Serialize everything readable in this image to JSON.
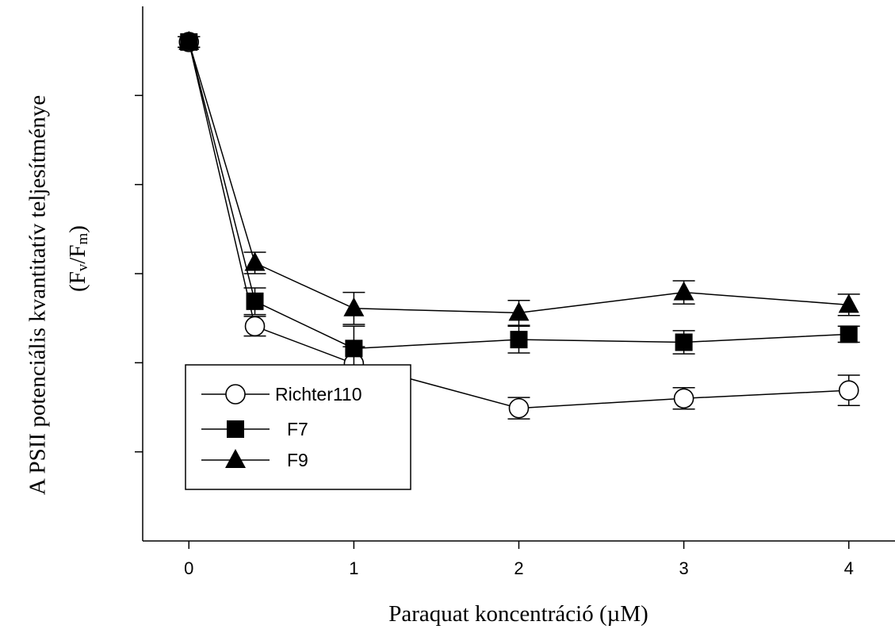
{
  "chart_data": {
    "type": "line",
    "xlabel": "Paraquat koncentráció (µM)",
    "ylabel": {
      "main": "A PSII potenciális kvantitatív teljesítménye",
      "formula_open": "(F",
      "formula_v": "v",
      "formula_slash": "/F",
      "formula_m": "m",
      "formula_close": ")"
    },
    "x_ticks": [
      0,
      1,
      2,
      3,
      4
    ],
    "y_ticks": [
      1,
      2,
      3,
      4,
      5
    ],
    "xlim": [
      -0.28,
      4.28
    ],
    "ylim": [
      0,
      6
    ],
    "y_tick_labels_shown": false,
    "grid": false,
    "legend_position": "bottom-left",
    "series": [
      {
        "name": "Richter110",
        "marker": "circle-open",
        "x": [
          0,
          0.4,
          1,
          2,
          3,
          4
        ],
        "y": [
          5.6,
          2.41,
          1.99,
          1.49,
          1.6,
          1.69
        ],
        "error": [
          0.06,
          0.11,
          0.19,
          0.12,
          0.12,
          0.17
        ]
      },
      {
        "name": "F7",
        "marker": "square-filled",
        "x": [
          0,
          0.4,
          1,
          2,
          3,
          4
        ],
        "y": [
          5.6,
          2.69,
          2.16,
          2.26,
          2.23,
          2.32
        ],
        "error": [
          0.06,
          0.15,
          0.25,
          0.15,
          0.13,
          0.09
        ]
      },
      {
        "name": "F9",
        "marker": "triangle-filled",
        "x": [
          0,
          0.4,
          1,
          2,
          3,
          4
        ],
        "y": [
          5.6,
          3.12,
          2.61,
          2.56,
          2.79,
          2.65
        ],
        "error": [
          0.06,
          0.12,
          0.18,
          0.14,
          0.13,
          0.12
        ]
      }
    ]
  }
}
